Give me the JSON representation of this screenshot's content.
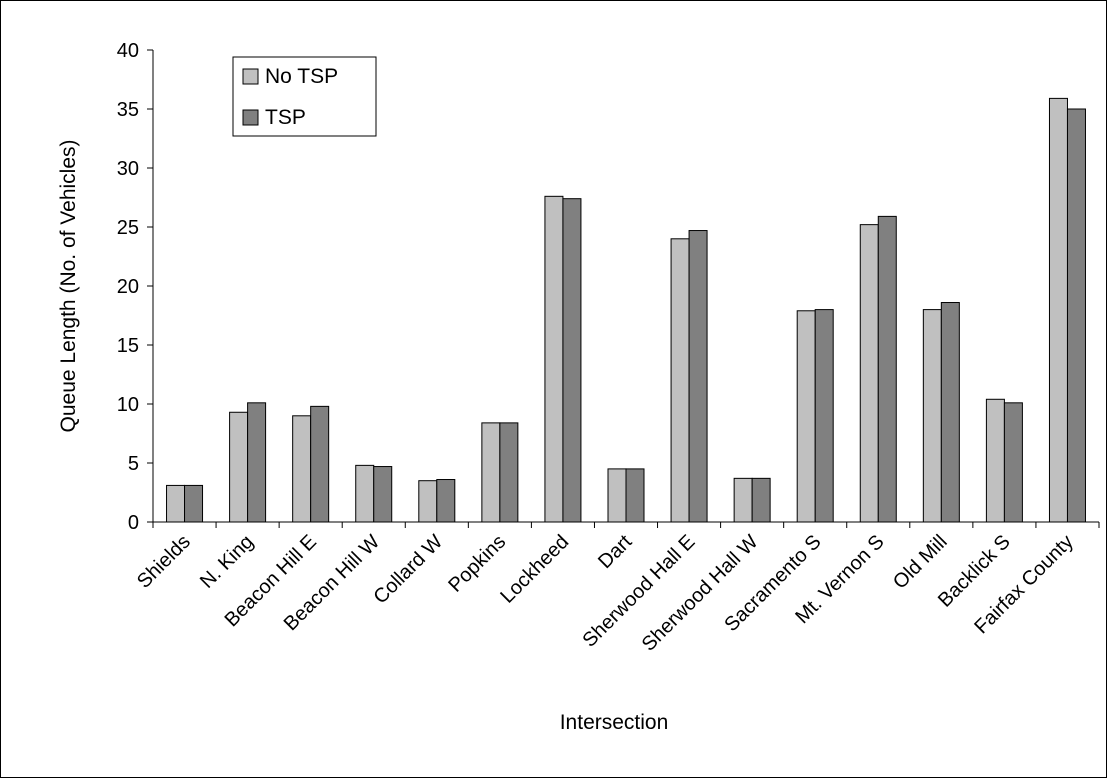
{
  "chart_data": {
    "type": "bar",
    "title": "",
    "xlabel": "Intersection",
    "ylabel": "Queue Length (No. of Vehicles)",
    "ylim": [
      0,
      40
    ],
    "yticks": [
      0,
      5,
      10,
      15,
      20,
      25,
      30,
      35,
      40
    ],
    "grid": false,
    "legend_position": "top-left",
    "categories": [
      "Shields",
      "N. King",
      "Beacon Hill E",
      "Beacon Hill W",
      "Collard W",
      "Popkins",
      "Lockheed",
      "Dart",
      "Sherwood Hall E",
      "Sherwood Hall W",
      "Sacramento S",
      "Mt. Vernon S",
      "Old Mill",
      "Backlick S",
      "Fairfax County"
    ],
    "series": [
      {
        "name": "No TSP",
        "color": "#c0c0c0",
        "values": [
          3.1,
          9.3,
          9.0,
          4.8,
          3.5,
          8.4,
          27.6,
          4.5,
          24.0,
          3.7,
          17.9,
          25.2,
          18.0,
          10.4,
          35.9
        ]
      },
      {
        "name": "TSP",
        "color": "#808080",
        "values": [
          3.1,
          10.1,
          9.8,
          4.7,
          3.6,
          8.4,
          27.4,
          4.5,
          24.7,
          3.7,
          18.0,
          25.9,
          18.6,
          10.1,
          35.0
        ]
      }
    ]
  }
}
